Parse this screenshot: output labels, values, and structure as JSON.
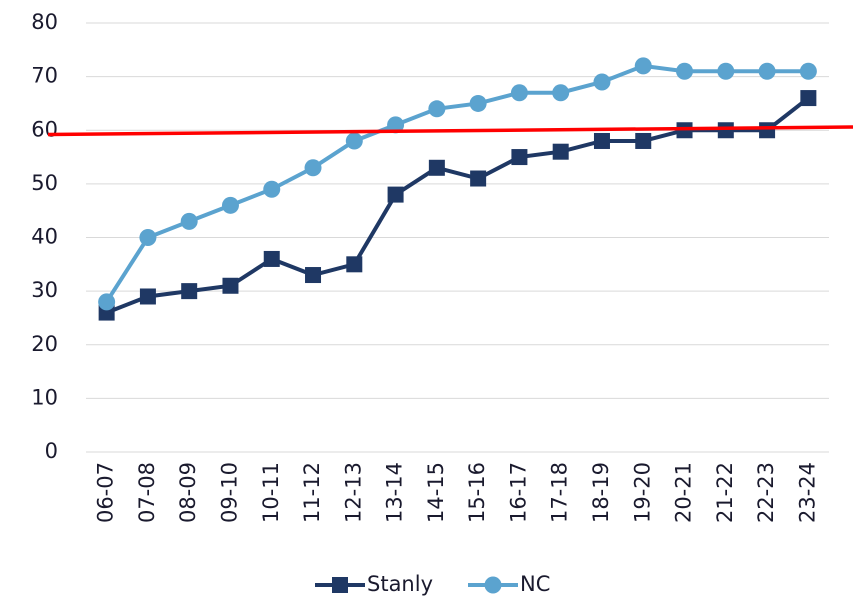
{
  "chart_data": {
    "type": "line",
    "categories": [
      "06-07",
      "07-08",
      "08-09",
      "09-10",
      "10-11",
      "11-12",
      "12-13",
      "13-14",
      "14-15",
      "15-16",
      "16-17",
      "17-18",
      "18-19",
      "19-20",
      "20-21",
      "21-22",
      "22-23",
      "23-24"
    ],
    "series": [
      {
        "name": "Stanly",
        "color": "#1f3864",
        "marker": "square",
        "values": [
          26,
          29,
          30,
          31,
          36,
          33,
          35,
          48,
          53,
          51,
          55,
          56,
          58,
          58,
          60,
          60,
          60,
          66
        ]
      },
      {
        "name": "NC",
        "color": "#5ba3cf",
        "marker": "circle",
        "values": [
          28,
          40,
          43,
          46,
          49,
          53,
          58,
          61,
          64,
          65,
          67,
          67,
          69,
          72,
          71,
          71,
          71,
          71
        ]
      }
    ],
    "reference_line": {
      "color": "#ff0000",
      "start": 59.2,
      "end": 60.6
    },
    "ylim": [
      0,
      80
    ],
    "yticks": [
      0,
      10,
      20,
      30,
      40,
      50,
      60,
      70,
      80
    ],
    "grid": true,
    "legend": "bottom"
  }
}
